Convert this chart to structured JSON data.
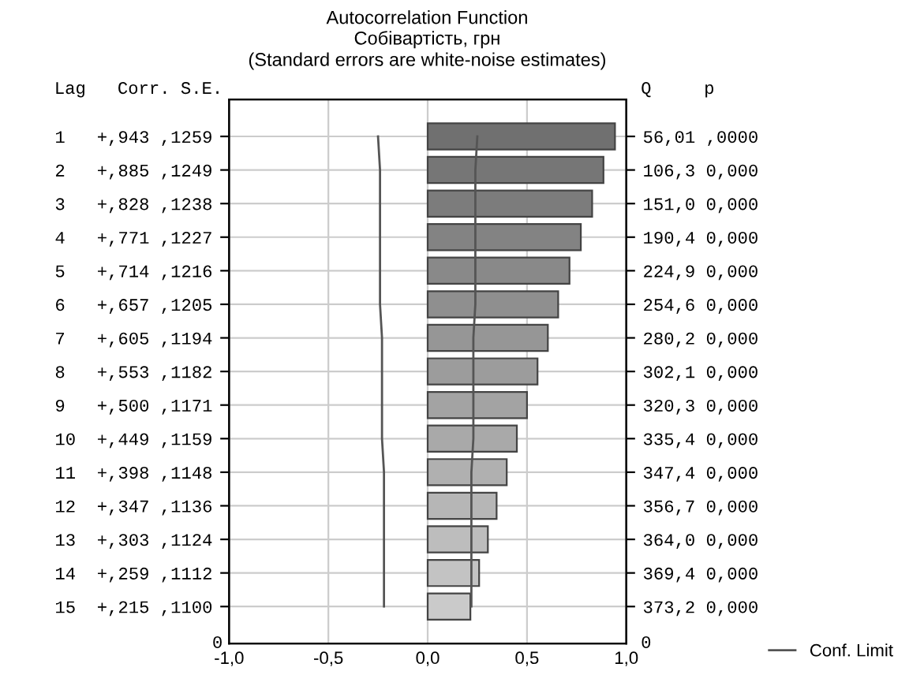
{
  "chart_data": {
    "type": "bar",
    "orientation": "horizontal",
    "title": "Autocorrelation Function",
    "subtitle": "Собівартість, грн\n(Standard errors are white-noise estimates)",
    "categories": [
      "1   +,943 ,1259",
      "2   +,885 ,1249",
      "3   +,828 ,1238",
      "4   +,771 ,1227",
      "5   +,714 ,1216",
      "6   +,657 ,1205",
      "7   +,605 ,1194",
      "8   +,553 ,1182",
      "9   +,500 ,1171",
      "10  +,449 ,1159",
      "11  +,398 ,1148",
      "12  +,347 ,1136",
      "13  +,303 ,1124",
      "14  +,259 ,1112",
      "15  +,215 ,1100"
    ],
    "y2_categories": [
      "56,01 ,0000",
      "106,3 0,000",
      "151,0 0,000",
      "190,4 0,000",
      "224,9 0,000",
      "254,6 0,000",
      "280,2 0,000",
      "302,1 0,000",
      "320,3 0,000",
      "335,4 0,000",
      "347,4 0,000",
      "356,7 0,000",
      "364,0 0,000",
      "369,4 0,000",
      "373,2 0,000"
    ],
    "series": [
      {
        "values": [
          0.943,
          0.885,
          0.828,
          0.771,
          0.714,
          0.657,
          0.605,
          0.553,
          0.5,
          0.449,
          0.398,
          0.347,
          0.303,
          0.259,
          0.215
        ],
        "colors": [
          "#707070",
          "#767676",
          "#7c7c7c",
          "#838383",
          "#898989",
          "#8f8f8f",
          "#969696",
          "#9c9c9c",
          "#a3a3a3",
          "#a9a9a9",
          "#b0b0b0",
          "#b6b6b6",
          "#bdbdbd",
          "#c3c3c3",
          "#cacaca"
        ]
      },
      {
        "type": "line",
        "name": "Conf. Limit",
        "color": "#555555",
        "values": [
          0.25,
          0.24,
          0.24,
          0.24,
          0.24,
          0.24,
          0.23,
          0.23,
          0.23,
          0.23,
          0.22,
          0.22,
          0.22,
          0.22,
          0.22
        ]
      },
      {
        "type": "line",
        "color": "#555555",
        "values": [
          -0.25,
          -0.24,
          -0.24,
          -0.24,
          -0.24,
          -0.24,
          -0.23,
          -0.23,
          -0.23,
          -0.23,
          -0.22,
          -0.22,
          -0.22,
          -0.22,
          -0.22
        ]
      }
    ],
    "xlim": [
      -1,
      1
    ],
    "xticks": [
      {
        "value": -1,
        "label": "-1,0"
      },
      {
        "value": -0.5,
        "label": "-0,5"
      },
      {
        "value": 0,
        "label": "0,0"
      },
      {
        "value": 0.5,
        "label": "0,5"
      },
      {
        "value": 1,
        "label": "1,0"
      }
    ],
    "annotations": [
      "Lag   Corr. S.E.",
      "Q     p",
      "0",
      "0"
    ],
    "grid": true,
    "legend": "bottom right"
  }
}
